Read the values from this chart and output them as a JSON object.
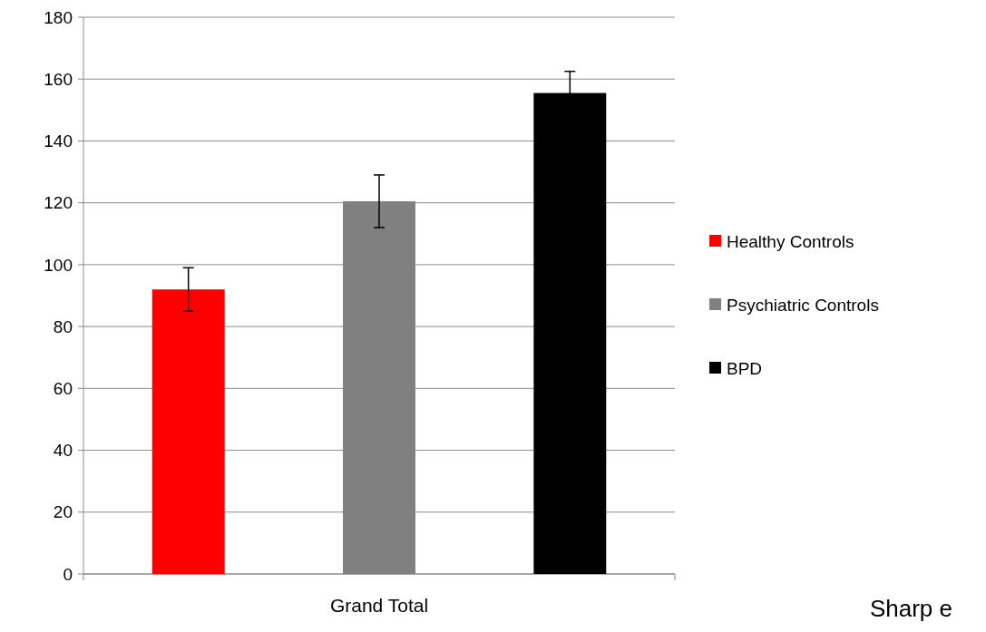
{
  "chart_data": {
    "type": "bar",
    "categories": [
      "Grand Total"
    ],
    "series": [
      {
        "name": "Healthy Controls",
        "color": "#ff0000",
        "values": [
          92
        ],
        "errors": [
          7
        ]
      },
      {
        "name": "Psychiatric Controls",
        "color": "#808080",
        "values": [
          120.5
        ],
        "errors": [
          8.5
        ]
      },
      {
        "name": "BPD",
        "color": "#000000",
        "values": [
          155.5
        ],
        "errors": [
          7
        ]
      }
    ],
    "ylim": [
      0,
      180
    ],
    "yticks": [
      0,
      20,
      40,
      60,
      80,
      100,
      120,
      140,
      160,
      180
    ],
    "grid": "y",
    "legend": "right",
    "annotations": [
      "Sharp e"
    ]
  }
}
